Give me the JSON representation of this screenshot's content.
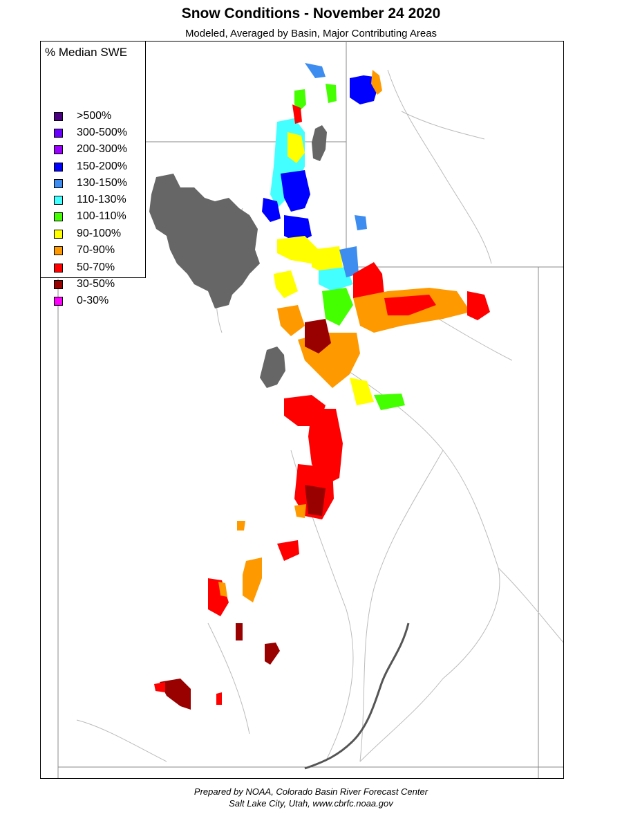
{
  "header": {
    "title": "Snow Conditions - November 24 2020",
    "subtitle": "Modeled, Averaged by Basin, Major Contributing Areas"
  },
  "legend": {
    "title": "% Median SWE",
    "items": [
      {
        "label": ">500%",
        "color": "#4b0082"
      },
      {
        "label": "300-500%",
        "color": "#6a00ff"
      },
      {
        "label": "200-300%",
        "color": "#9a00ff"
      },
      {
        "label": "150-200%",
        "color": "#0000ff"
      },
      {
        "label": "130-150%",
        "color": "#3d8cf0"
      },
      {
        "label": "110-130%",
        "color": "#44ffff"
      },
      {
        "label": "100-110%",
        "color": "#44ff00"
      },
      {
        "label": "90-100%",
        "color": "#ffff00"
      },
      {
        "label": "70-90%",
        "color": "#ff9900"
      },
      {
        "label": "50-70%",
        "color": "#ff0000"
      },
      {
        "label": "30-50%",
        "color": "#990000"
      },
      {
        "label": "0-30%",
        "color": "#ff00ff"
      }
    ]
  },
  "map": {
    "lake_color": "#666666",
    "boundary_color": "#888888",
    "river_color": "#b8b8b8"
  },
  "footer": {
    "line1": "Prepared by NOAA, Colorado Basin River Forecast Center",
    "line2": "Salt Lake City, Utah, www.cbrfc.noaa.gov"
  }
}
